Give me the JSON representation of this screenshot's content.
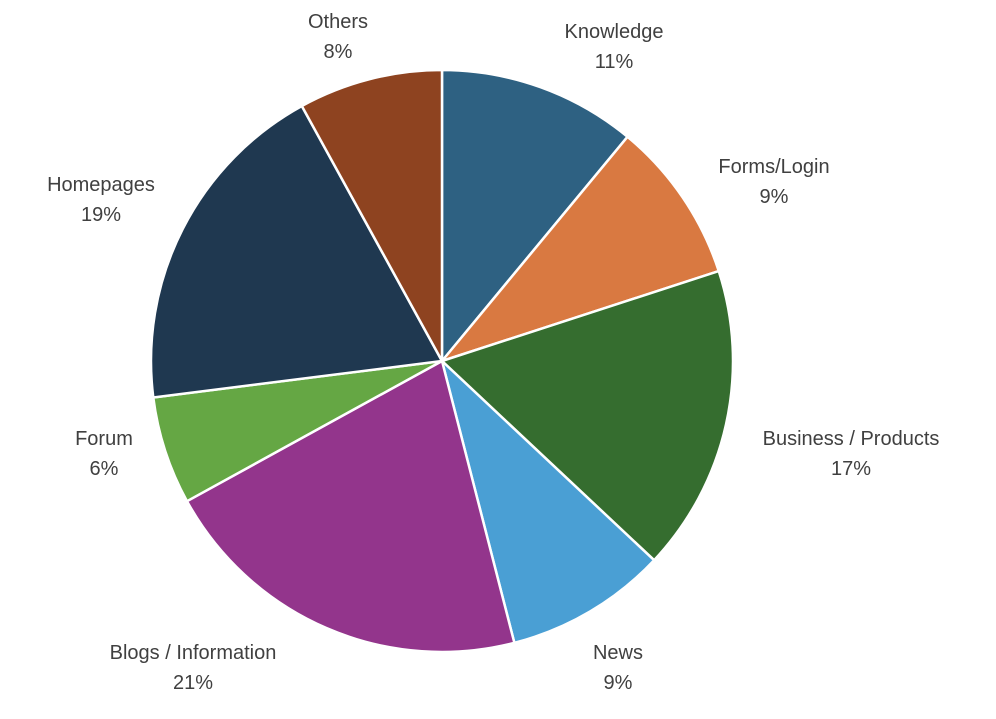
{
  "chart_data": {
    "type": "pie",
    "title": "",
    "slices": [
      {
        "label": "Knowledge",
        "value": 11,
        "value_label": "11%",
        "color": "#2e6182"
      },
      {
        "label": "Forms/Login",
        "value": 9,
        "value_label": "9%",
        "color": "#d97941"
      },
      {
        "label": "Business / Products",
        "value": 17,
        "value_label": "17%",
        "color": "#356d2f"
      },
      {
        "label": "News",
        "value": 9,
        "value_label": "9%",
        "color": "#4a9fd4"
      },
      {
        "label": "Blogs / Information",
        "value": 21,
        "value_label": "21%",
        "color": "#93358c"
      },
      {
        "label": "Forum",
        "value": 6,
        "value_label": "6%",
        "color": "#65a744"
      },
      {
        "label": "Homepages",
        "value": 19,
        "value_label": "19%",
        "color": "#1f3850"
      },
      {
        "label": "Others",
        "value": 8,
        "value_label": "8%",
        "color": "#8e4320"
      }
    ],
    "start_angle": "12 o'clock",
    "direction": "clockwise",
    "legend": "none",
    "label_placement": "outside"
  }
}
